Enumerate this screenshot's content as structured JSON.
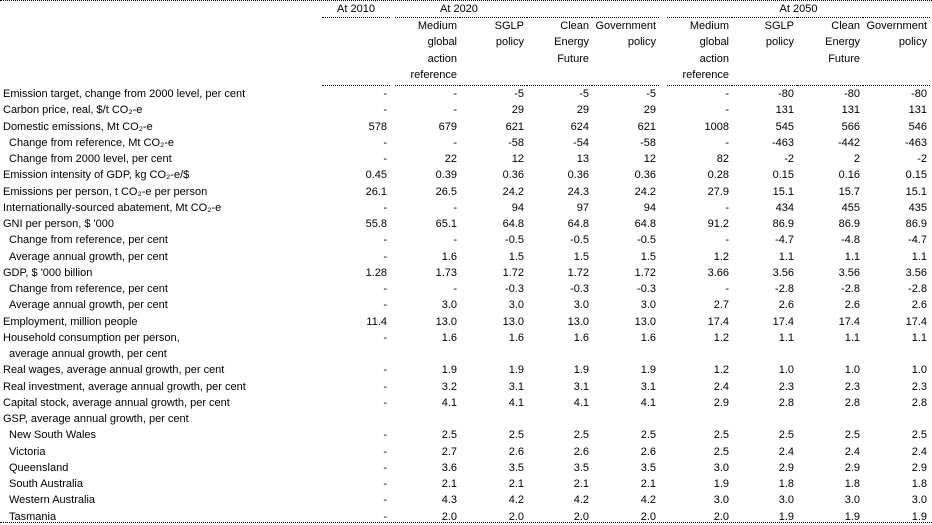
{
  "header": {
    "groups": [
      "At 2010",
      "At 2020",
      "At 2050"
    ],
    "subheads_2020": [
      "Medium\nglobal\naction\nreference",
      "SGLP\npolicy",
      "Clean\nEnergy\nFuture",
      "Government\npolicy"
    ],
    "subheads_2050": [
      "Medium\nglobal\naction\nreference",
      "SGLP\npolicy",
      "Clean\nEnergy\nFuture",
      "Government\npolicy"
    ]
  },
  "rows": [
    {
      "label": "Emission target, change from 2000 level, per cent",
      "indent": false,
      "values": [
        "-",
        "-",
        "-5",
        "-5",
        "-5",
        "-",
        "-80",
        "-80",
        "-80"
      ]
    },
    {
      "label": "Carbon price, real, $/t CO₂-e",
      "indent": false,
      "values": [
        "-",
        "-",
        "29",
        "29",
        "29",
        "-",
        "131",
        "131",
        "131"
      ]
    },
    {
      "label": "Domestic emissions, Mt CO₂-e",
      "indent": false,
      "values": [
        "578",
        "679",
        "621",
        "624",
        "621",
        "1008",
        "545",
        "566",
        "546"
      ]
    },
    {
      "label": "Change from reference, Mt CO₂-e",
      "indent": true,
      "values": [
        "-",
        "-",
        "-58",
        "-54",
        "-58",
        "-",
        "-463",
        "-442",
        "-463"
      ]
    },
    {
      "label": "Change from 2000 level, per cent",
      "indent": true,
      "values": [
        "-",
        "22",
        "12",
        "13",
        "12",
        "82",
        "-2",
        "2",
        "-2"
      ]
    },
    {
      "label": "Emission intensity of GDP, kg CO₂-e/$",
      "indent": false,
      "values": [
        "0.45",
        "0.39",
        "0.36",
        "0.36",
        "0.36",
        "0.28",
        "0.15",
        "0.16",
        "0.15"
      ]
    },
    {
      "label": "Emissions per person, t CO₂-e per person",
      "indent": false,
      "values": [
        "26.1",
        "26.5",
        "24.2",
        "24.3",
        "24.2",
        "27.9",
        "15.1",
        "15.7",
        "15.1"
      ]
    },
    {
      "label": "Internationally-sourced abatement, Mt CO₂-e",
      "indent": false,
      "values": [
        "-",
        "-",
        "94",
        "97",
        "94",
        "-",
        "434",
        "455",
        "435"
      ]
    },
    {
      "label": "GNI per person, $ '000",
      "indent": false,
      "values": [
        "55.8",
        "65.1",
        "64.8",
        "64.8",
        "64.8",
        "91.2",
        "86.9",
        "86.9",
        "86.9"
      ]
    },
    {
      "label": "Change from reference, per cent",
      "indent": true,
      "values": [
        "-",
        "-",
        "-0.5",
        "-0.5",
        "-0.5",
        "-",
        "-4.7",
        "-4.8",
        "-4.7"
      ]
    },
    {
      "label": "Average annual growth, per cent",
      "indent": true,
      "values": [
        "-",
        "1.6",
        "1.5",
        "1.5",
        "1.5",
        "1.2",
        "1.1",
        "1.1",
        "1.1"
      ]
    },
    {
      "label": "GDP, $ '000 billion",
      "indent": false,
      "values": [
        "1.28",
        "1.73",
        "1.72",
        "1.72",
        "1.72",
        "3.66",
        "3.56",
        "3.56",
        "3.56"
      ]
    },
    {
      "label": "Change from reference, per cent",
      "indent": true,
      "values": [
        "-",
        "-",
        "-0.3",
        "-0.3",
        "-0.3",
        "-",
        "-2.8",
        "-2.8",
        "-2.8"
      ]
    },
    {
      "label": "Average annual growth, per cent",
      "indent": true,
      "values": [
        "-",
        "3.0",
        "3.0",
        "3.0",
        "3.0",
        "2.7",
        "2.6",
        "2.6",
        "2.6"
      ]
    },
    {
      "label": "Employment, million people",
      "indent": false,
      "values": [
        "11.4",
        "13.0",
        "13.0",
        "13.0",
        "13.0",
        "17.4",
        "17.4",
        "17.4",
        "17.4"
      ]
    },
    {
      "label": "Household consumption per person,",
      "indent": false,
      "values": [
        "-",
        "1.6",
        "1.6",
        "1.6",
        "1.6",
        "1.2",
        "1.1",
        "1.1",
        "1.1"
      ]
    },
    {
      "label": "average annual growth, per cent",
      "indent": true,
      "values": []
    },
    {
      "label": "Real wages, average annual growth, per cent",
      "indent": false,
      "values": [
        "-",
        "1.9",
        "1.9",
        "1.9",
        "1.9",
        "1.2",
        "1.0",
        "1.0",
        "1.0"
      ]
    },
    {
      "label": "Real investment, average annual growth, per cent",
      "indent": false,
      "values": [
        "-",
        "3.2",
        "3.1",
        "3.1",
        "3.1",
        "2.4",
        "2.3",
        "2.3",
        "2.3"
      ]
    },
    {
      "label": "Capital stock, average annual growth, per cent",
      "indent": false,
      "values": [
        "-",
        "4.1",
        "4.1",
        "4.1",
        "4.1",
        "2.9",
        "2.8",
        "2.8",
        "2.8"
      ]
    },
    {
      "label": "GSP, average annual growth, per cent",
      "indent": false,
      "values": []
    },
    {
      "label": "New South Wales",
      "indent": true,
      "values": [
        "-",
        "2.5",
        "2.5",
        "2.5",
        "2.5",
        "2.5",
        "2.5",
        "2.5",
        "2.5"
      ]
    },
    {
      "label": "Victoria",
      "indent": true,
      "values": [
        "-",
        "2.7",
        "2.6",
        "2.6",
        "2.6",
        "2.5",
        "2.4",
        "2.4",
        "2.4"
      ]
    },
    {
      "label": "Queensland",
      "indent": true,
      "values": [
        "-",
        "3.6",
        "3.5",
        "3.5",
        "3.5",
        "3.0",
        "2.9",
        "2.9",
        "2.9"
      ]
    },
    {
      "label": "South Australia",
      "indent": true,
      "values": [
        "-",
        "2.1",
        "2.1",
        "2.1",
        "2.1",
        "1.9",
        "1.8",
        "1.8",
        "1.8"
      ]
    },
    {
      "label": "Western Australia",
      "indent": true,
      "values": [
        "-",
        "4.3",
        "4.2",
        "4.2",
        "4.2",
        "3.0",
        "3.0",
        "3.0",
        "3.0"
      ]
    },
    {
      "label": "Tasmania",
      "indent": true,
      "values": [
        "-",
        "2.0",
        "2.0",
        "2.0",
        "2.0",
        "2.0",
        "1.9",
        "1.9",
        "1.9"
      ]
    }
  ]
}
